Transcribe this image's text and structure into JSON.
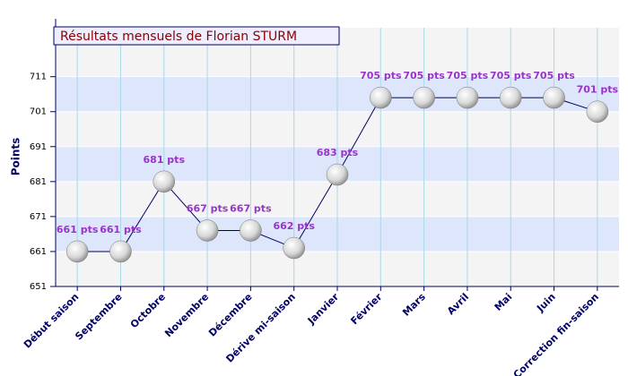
{
  "chart_data": {
    "type": "line",
    "title": "Résultats mensuels de Florian STURM",
    "y_label": "Points",
    "categories": [
      "Début saison",
      "Septembre",
      "Octobre",
      "Novembre",
      "Décembre",
      "Dérive mi-saison",
      "Janvier",
      "Février",
      "Mars",
      "Avril",
      "Mai",
      "Juin",
      "Correction fin-saison"
    ],
    "values": [
      661,
      661,
      681,
      667,
      667,
      662,
      683,
      705,
      705,
      705,
      705,
      705,
      701
    ],
    "value_labels": [
      "661 pts",
      "661 pts",
      "681 pts",
      "667 pts",
      "667 pts",
      "662 pts",
      "683 pts",
      "705 pts",
      "705 pts",
      "705 pts",
      "705 pts",
      "705 pts",
      "701 pts"
    ],
    "color": "#000066",
    "label_color": "#9933cc",
    "ylim": [
      651,
      725
    ],
    "yticks": [
      651,
      661,
      671,
      681,
      691,
      701,
      711
    ],
    "grid": true
  }
}
